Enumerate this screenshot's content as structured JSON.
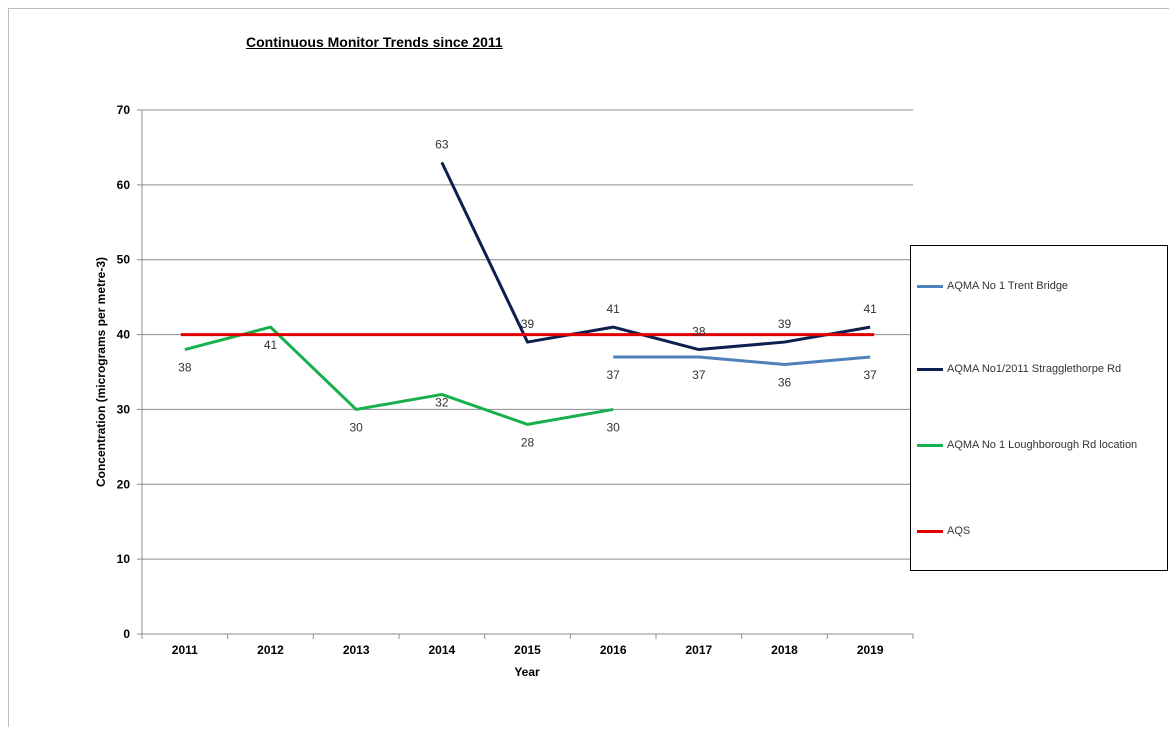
{
  "chart_data": {
    "type": "line",
    "title": "Continuous Monitor Trends since 2011",
    "xlabel": "Year",
    "ylabel": "Concentration (micrograms  per  metre-3)",
    "categories": [
      "2011",
      "2012",
      "2013",
      "2014",
      "2015",
      "2016",
      "2017",
      "2018",
      "2019"
    ],
    "ylim": [
      0,
      70
    ],
    "yticks": [
      0,
      10,
      20,
      30,
      40,
      50,
      60,
      70
    ],
    "grid": true,
    "legend_position": "right",
    "series": [
      {
        "name": "AQMA No 1 Trent Bridge",
        "color": "#4f81bd",
        "values": [
          null,
          null,
          null,
          null,
          null,
          37,
          37,
          36,
          37
        ],
        "labels": [
          null,
          null,
          null,
          null,
          null,
          "37",
          "37",
          "36",
          "37"
        ]
      },
      {
        "name": "AQMA No1/2011 Stragglethorpe Rd",
        "color": "#0c1f4f",
        "values": [
          null,
          null,
          null,
          63,
          39,
          41,
          38,
          39,
          41
        ],
        "labels": [
          null,
          null,
          null,
          "63",
          "39",
          "41",
          "38",
          "39",
          "41"
        ]
      },
      {
        "name": "AQMA No 1 Loughborough Rd location",
        "color": "#17b04c",
        "values": [
          38,
          41,
          30,
          32,
          28,
          30,
          null,
          null,
          null
        ],
        "labels": [
          "38",
          "41",
          "30",
          "32",
          "28",
          "30",
          null,
          null,
          null
        ]
      },
      {
        "name": "AQS",
        "color": "#e00000",
        "values": [
          40,
          40,
          40,
          40,
          40,
          40,
          40,
          40,
          40
        ],
        "labels": [
          null,
          null,
          null,
          null,
          null,
          null,
          null,
          null,
          null
        ]
      }
    ]
  }
}
